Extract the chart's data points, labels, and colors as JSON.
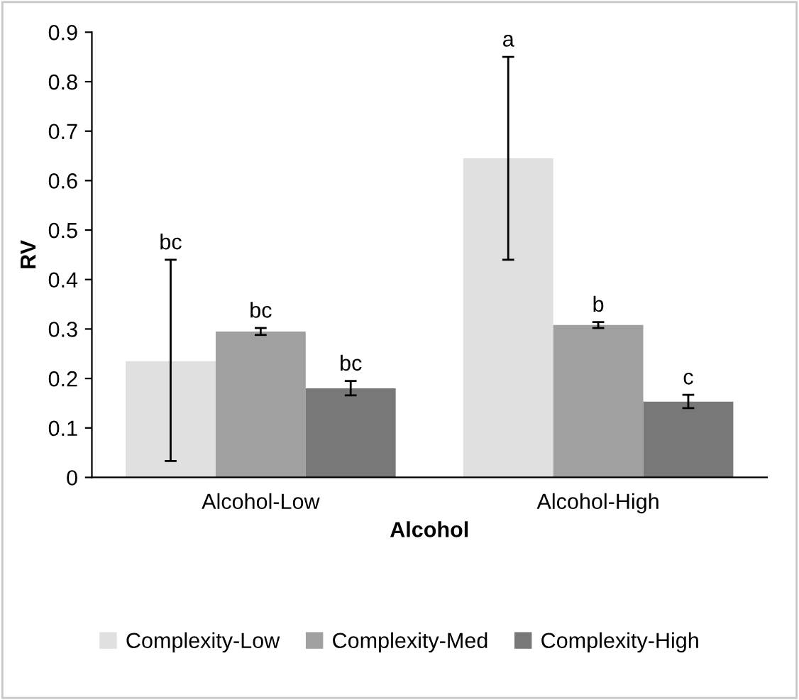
{
  "chart_data": {
    "type": "bar",
    "xlabel": "Alcohol",
    "ylabel": "RV",
    "categories": [
      "Alcohol-Low",
      "Alcohol-High"
    ],
    "series": [
      {
        "name": "Complexity-Low",
        "color": "#e0e0e0",
        "values": [
          0.235,
          0.645
        ],
        "errors": [
          [
            0.033,
            0.44
          ],
          [
            0.44,
            0.85
          ]
        ]
      },
      {
        "name": "Complexity-Med",
        "color": "#a0a0a0",
        "values": [
          0.295,
          0.308
        ],
        "errors": [
          [
            0.288,
            0.302
          ],
          [
            0.302,
            0.314
          ]
        ]
      },
      {
        "name": "Complexity-High",
        "color": "#787878",
        "values": [
          0.18,
          0.153
        ],
        "errors": [
          [
            0.166,
            0.195
          ],
          [
            0.14,
            0.167
          ]
        ]
      }
    ],
    "annotations": [
      "bc",
      "bc",
      "bc",
      "a",
      "b",
      "c"
    ],
    "ylim": [
      0,
      0.9
    ],
    "yticks": [
      0,
      0.1,
      0.2,
      0.3,
      0.4,
      0.5,
      0.6,
      0.7,
      0.8,
      0.9
    ],
    "grid": false,
    "legend": "bottom"
  }
}
